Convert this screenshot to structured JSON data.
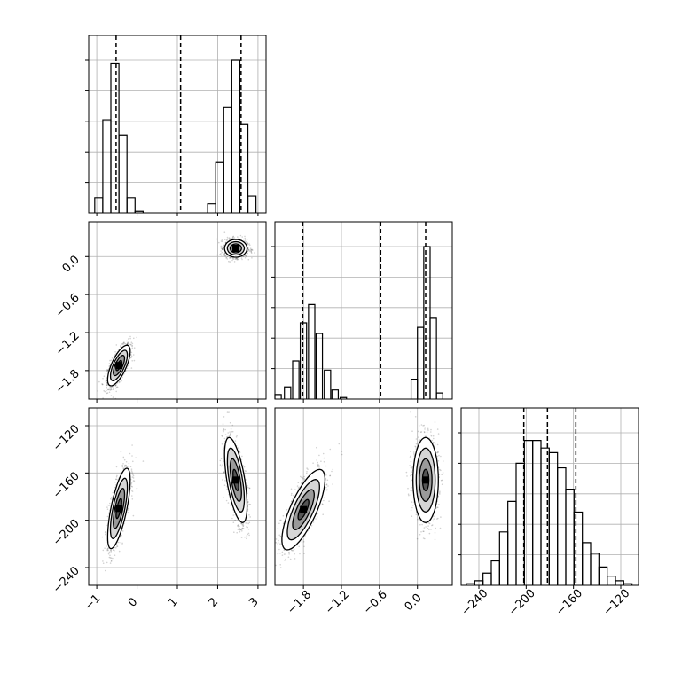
{
  "chart_data": {
    "type": "corner",
    "title": "",
    "parameters": [
      "",
      "",
      ""
    ],
    "grid": true,
    "panels": [
      {
        "kind": "hist1d",
        "param": 0,
        "xlim": [
          -1.2,
          3.2
        ],
        "bins": [
          [
            -0.95,
            0.1
          ],
          [
            -0.75,
            0.61
          ],
          [
            -0.55,
            0.98
          ],
          [
            -0.35,
            0.51
          ],
          [
            -0.15,
            0.1
          ],
          [
            0.05,
            0.01
          ],
          [
            1.85,
            0.06
          ],
          [
            2.05,
            0.33
          ],
          [
            2.25,
            0.69
          ],
          [
            2.45,
            1.0
          ],
          [
            2.65,
            0.58
          ],
          [
            2.85,
            0.11
          ]
        ],
        "quantile_lines": [
          -0.52,
          1.08,
          2.58
        ],
        "xticks": [
          -1,
          0,
          1,
          2,
          3
        ]
      },
      {
        "kind": "density2d",
        "xparam": 0,
        "yparam": 1,
        "xlim": [
          -1.2,
          3.2
        ],
        "ylim": [
          -2.25,
          0.55
        ],
        "clusters": [
          {
            "mean": [
              -0.45,
              -1.72
            ],
            "sd": [
              0.14,
              0.16
            ],
            "corr": 0.7
          },
          {
            "mean": [
              2.45,
              0.13
            ],
            "sd": [
              0.14,
              0.07
            ],
            "corr": 0.0
          }
        ],
        "yticks": [
          -1.8,
          -1.2,
          -0.6,
          0.0
        ],
        "ytick_labels": [
          "−1.8",
          "−1.2",
          "−0.6",
          "0.0"
        ]
      },
      {
        "kind": "hist1d",
        "param": 1,
        "xlim": [
          -2.25,
          0.55
        ],
        "bins": [
          [
            -2.2,
            0.03
          ],
          [
            -2.05,
            0.08
          ],
          [
            -1.92,
            0.25
          ],
          [
            -1.8,
            0.5
          ],
          [
            -1.67,
            0.62
          ],
          [
            -1.55,
            0.43
          ],
          [
            -1.42,
            0.19
          ],
          [
            -1.3,
            0.06
          ],
          [
            -1.17,
            0.01
          ],
          [
            -0.05,
            0.13
          ],
          [
            0.05,
            0.47
          ],
          [
            0.15,
            1.0
          ],
          [
            0.25,
            0.53
          ],
          [
            0.35,
            0.04
          ]
        ],
        "quantile_lines": [
          -1.81,
          -0.58,
          0.13
        ],
        "xticks": [
          -1.8,
          -1.2,
          -0.6,
          0.0
        ]
      },
      {
        "kind": "density2d",
        "xparam": 0,
        "yparam": 2,
        "xlim": [
          -1.2,
          3.2
        ],
        "ylim": [
          -255,
          -105
        ],
        "clusters": [
          {
            "mean": [
              -0.45,
              -190
            ],
            "sd": [
              0.14,
              17
            ],
            "corr": 0.7
          },
          {
            "mean": [
              2.45,
              -166
            ],
            "sd": [
              0.14,
              18
            ],
            "corr": -0.6
          }
        ],
        "yticks": [
          -240,
          -200,
          -160,
          -120
        ],
        "ytick_labels": [
          "−240",
          "−200",
          "−160",
          "−120"
        ]
      },
      {
        "kind": "density2d",
        "xparam": 1,
        "yparam": 2,
        "xlim": [
          -2.25,
          0.55
        ],
        "ylim": [
          -255,
          -105
        ],
        "clusters": [
          {
            "mean": [
              -1.8,
              -191
            ],
            "sd": [
              0.17,
              17
            ],
            "corr": 0.75
          },
          {
            "mean": [
              0.13,
              -166
            ],
            "sd": [
              0.1,
              18
            ],
            "corr": 0.0
          }
        ],
        "xticks": [
          -1.8,
          -1.2,
          -0.6,
          0.0
        ],
        "xtick_labels": [
          "−1.8",
          "−1.2",
          "−0.6",
          "0.0"
        ]
      },
      {
        "kind": "hist1d",
        "param": 2,
        "xlim": [
          -255,
          -105
        ],
        "bins": [
          [
            -247,
            0.01
          ],
          [
            -240,
            0.03
          ],
          [
            -233,
            0.08
          ],
          [
            -226,
            0.16
          ],
          [
            -219,
            0.35
          ],
          [
            -212,
            0.55
          ],
          [
            -205,
            0.8
          ],
          [
            -198,
            0.95
          ],
          [
            -191,
            0.95
          ],
          [
            -184,
            0.9
          ],
          [
            -177,
            0.87
          ],
          [
            -170,
            0.77
          ],
          [
            -163,
            0.63
          ],
          [
            -156,
            0.48
          ],
          [
            -149,
            0.28
          ],
          [
            -142,
            0.21
          ],
          [
            -135,
            0.12
          ],
          [
            -128,
            0.06
          ],
          [
            -121,
            0.03
          ],
          [
            -114,
            0.01
          ]
        ],
        "quantile_lines": [
          -202,
          -182,
          -158
        ],
        "xticks": [
          -240,
          -200,
          -160,
          -120
        ],
        "xtick_labels": [
          "−240",
          "−200",
          "−160",
          "−120"
        ]
      }
    ],
    "x_axis_labels_row3": {
      "col0": [
        "−1",
        "0",
        "1",
        "2",
        "3"
      ]
    },
    "colors": {
      "hist_line": "#000000",
      "quantile_line": "#000000",
      "scatter": "#000000",
      "contour_fill": [
        "#d6d6d6",
        "#9a9a9a",
        "#555555",
        "#000000"
      ],
      "grid": "#b0b0b0"
    }
  }
}
